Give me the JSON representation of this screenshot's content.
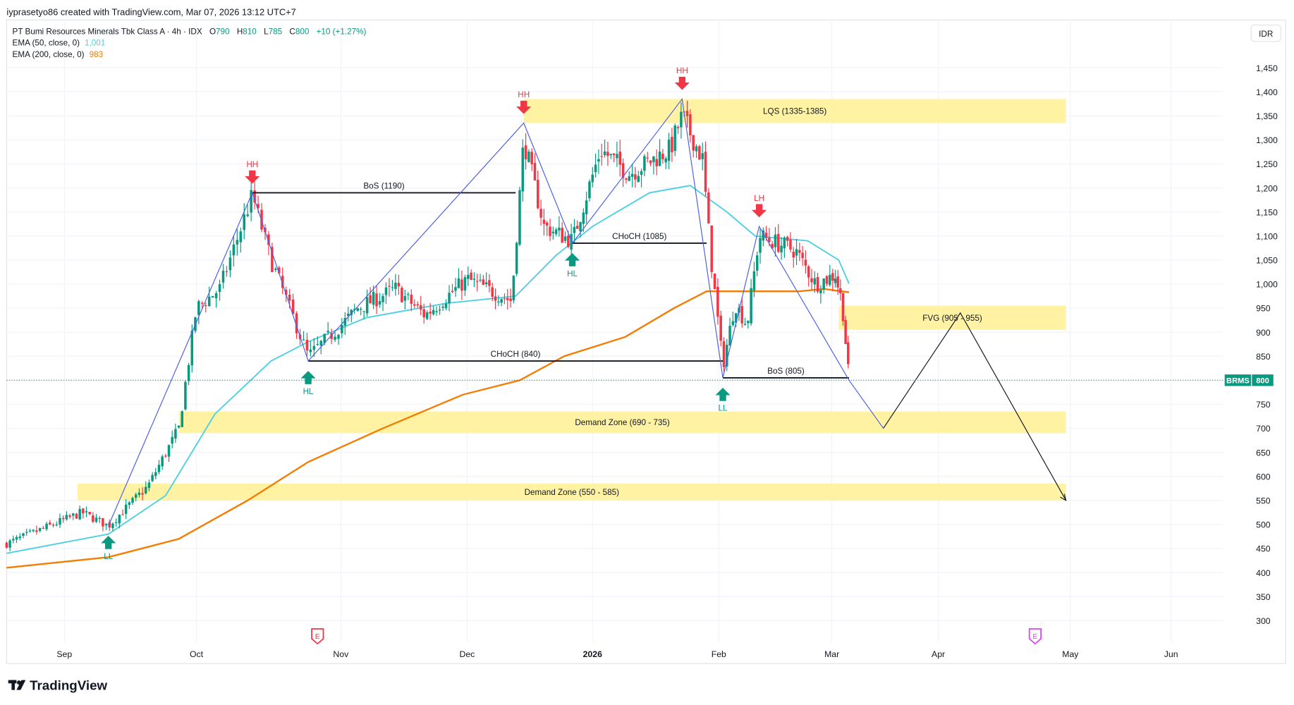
{
  "watermark_header": "iyprasetyo86 created with TradingView.com, Mar 07, 2026 13:12 UTC+7",
  "legend": {
    "title": "PT Bumi Resources Minerals Tbk Class A · 4h · IDX",
    "o_label": "O",
    "o": "790",
    "h_label": "H",
    "h": "810",
    "l_label": "L",
    "l": "785",
    "c_label": "C",
    "c": "800",
    "change": "+10 (+1.27%)",
    "ema50_label": "EMA (50, close, 0)",
    "ema50_value": "1,001",
    "ema200_label": "EMA (200, close, 0)",
    "ema200_value": "983"
  },
  "currency_button": "IDR",
  "price_tag": {
    "symbol": "BRMS",
    "price": "800",
    "value": 800
  },
  "price_axis": {
    "ticks": [
      300,
      350,
      400,
      450,
      500,
      550,
      600,
      650,
      700,
      750,
      800,
      850,
      900,
      950,
      1000,
      1050,
      1100,
      1150,
      1200,
      1250,
      1300,
      1350,
      1400,
      1450
    ],
    "labels": [
      "300",
      "350",
      "400",
      "450",
      "500",
      "550",
      "600",
      "650",
      "700",
      "750",
      "",
      "850",
      "900",
      "950",
      "1,000",
      "1,050",
      "1,100",
      "1,150",
      "1,200",
      "1,250",
      "1,300",
      "1,350",
      "1,400",
      "1,450"
    ]
  },
  "time_axis": {
    "labels": [
      "Sep",
      "Oct",
      "Nov",
      "Dec",
      "2026",
      "Feb",
      "Mar",
      "Apr",
      "May",
      "Jun"
    ],
    "dates": [
      "2025-09-01",
      "2025-10-01",
      "2025-11-01",
      "2025-12-01",
      "2026-01-01",
      "2026-02-01",
      "2026-03-01",
      "2026-04-01",
      "2026-05-01",
      "2026-06-01"
    ]
  },
  "earnings_markers": [
    {
      "date": "2025-10-27",
      "label": "E",
      "color": "#f23645"
    },
    {
      "date": "2026-04-23",
      "label": "E",
      "color": "#e040fb"
    }
  ],
  "colors": {
    "up": "#089981",
    "down": "#f23645",
    "ema50": "#4dd0e1",
    "ema200": "#f57c00",
    "zone": "#fff3a3",
    "swing": "#4a5fe8",
    "projection": "#131722"
  },
  "chart_data": {
    "type": "candlestick",
    "symbol": "BRMS",
    "interval": "4h",
    "price_path": [
      [
        "2025-08-19",
        460
      ],
      [
        "2025-09-05",
        525
      ],
      [
        "2025-09-11",
        497
      ],
      [
        "2025-09-20",
        580
      ],
      [
        "2025-09-27",
        700
      ],
      [
        "2025-10-01",
        950
      ],
      [
        "2025-10-06",
        990
      ],
      [
        "2025-10-13",
        1185
      ],
      [
        "2025-10-17",
        1050
      ],
      [
        "2025-10-25",
        850
      ],
      [
        "2025-11-05",
        950
      ],
      [
        "2025-11-14",
        990
      ],
      [
        "2025-11-21",
        935
      ],
      [
        "2025-12-01",
        1010
      ],
      [
        "2025-12-12",
        965
      ],
      [
        "2025-12-15",
        1300
      ],
      [
        "2025-12-20",
        1120
      ],
      [
        "2025-12-27",
        1090
      ],
      [
        "2026-01-03",
        1280
      ],
      [
        "2026-01-10",
        1230
      ],
      [
        "2026-01-20",
        1280
      ],
      [
        "2026-01-23",
        1350
      ],
      [
        "2026-01-28",
        1260
      ],
      [
        "2026-01-30",
        1060
      ],
      [
        "2026-02-02",
        830
      ],
      [
        "2026-02-05",
        960
      ],
      [
        "2026-02-08",
        915
      ],
      [
        "2026-02-11",
        1100
      ],
      [
        "2026-02-20",
        1070
      ],
      [
        "2026-02-25",
        1000
      ],
      [
        "2026-03-02",
        1020
      ],
      [
        "2026-03-04",
        960
      ],
      [
        "2026-03-06",
        800
      ]
    ],
    "ema50": [
      [
        "2025-08-19",
        440
      ],
      [
        "2025-09-11",
        480
      ],
      [
        "2025-09-24",
        560
      ],
      [
        "2025-10-05",
        730
      ],
      [
        "2025-10-17",
        840
      ],
      [
        "2025-10-25",
        880
      ],
      [
        "2025-11-07",
        930
      ],
      [
        "2025-11-26",
        960
      ],
      [
        "2025-12-13",
        975
      ],
      [
        "2025-12-23",
        1060
      ],
      [
        "2026-01-01",
        1120
      ],
      [
        "2026-01-15",
        1190
      ],
      [
        "2026-01-25",
        1205
      ],
      [
        "2026-02-03",
        1150
      ],
      [
        "2026-02-10",
        1100
      ],
      [
        "2026-02-23",
        1090
      ],
      [
        "2026-03-03",
        1050
      ],
      [
        "2026-03-06",
        1001
      ]
    ],
    "ema200": [
      [
        "2025-08-19",
        410
      ],
      [
        "2025-09-11",
        432
      ],
      [
        "2025-09-27",
        470
      ],
      [
        "2025-10-12",
        550
      ],
      [
        "2025-10-25",
        630
      ],
      [
        "2025-11-11",
        700
      ],
      [
        "2025-11-30",
        770
      ],
      [
        "2025-12-14",
        800
      ],
      [
        "2025-12-25",
        850
      ],
      [
        "2026-01-09",
        890
      ],
      [
        "2026-01-21",
        950
      ],
      [
        "2026-01-29",
        985
      ],
      [
        "2026-02-21",
        985
      ],
      [
        "2026-02-27",
        990
      ],
      [
        "2026-03-06",
        983
      ]
    ],
    "zones": [
      {
        "label": "LQS (1335-1385)",
        "low": 1335,
        "high": 1385,
        "from": "2025-12-15",
        "to": "2026-04-30"
      },
      {
        "label": "FVG (905 - 955)",
        "low": 905,
        "high": 955,
        "from": "2026-03-03",
        "to": "2026-04-30"
      },
      {
        "label": "Demand Zone (690 - 735)",
        "low": 690,
        "high": 735,
        "from": "2025-09-27",
        "to": "2026-04-30"
      },
      {
        "label": "Demand Zone (550 - 585)",
        "low": 550,
        "high": 585,
        "from": "2025-09-04",
        "to": "2026-04-30"
      }
    ],
    "levels": [
      {
        "label": "BoS (1190)",
        "price": 1190,
        "from": "2025-10-13",
        "to": "2025-12-13"
      },
      {
        "label": "CHoCH (1085)",
        "price": 1085,
        "from": "2025-12-27",
        "to": "2026-01-29"
      },
      {
        "label": "CHoCH (840)",
        "price": 840,
        "from": "2025-10-25",
        "to": "2026-02-02"
      },
      {
        "label": "BoS (805)",
        "price": 805,
        "from": "2026-02-02",
        "to": "2026-03-06"
      }
    ],
    "swings": [
      [
        "2025-09-11",
        497
      ],
      [
        "2025-10-13",
        1190
      ],
      [
        "2025-10-25",
        840
      ],
      [
        "2025-12-15",
        1335
      ],
      [
        "2025-12-27",
        1085
      ],
      [
        "2026-01-23",
        1385
      ],
      [
        "2026-02-02",
        805
      ],
      [
        "2026-02-11",
        1120
      ],
      [
        "2026-03-06",
        800
      ],
      [
        "2026-03-16",
        700
      ]
    ],
    "projection": [
      [
        "2026-03-16",
        700
      ],
      [
        "2026-04-06",
        940
      ],
      [
        "2026-04-30",
        550
      ]
    ],
    "swing_labels": [
      {
        "label": "LL",
        "date": "2025-09-11",
        "price": 497,
        "dir": "up"
      },
      {
        "label": "HH",
        "date": "2025-10-13",
        "price": 1190,
        "dir": "down"
      },
      {
        "label": "HL",
        "date": "2025-10-25",
        "price": 840,
        "dir": "up"
      },
      {
        "label": "HH",
        "date": "2025-12-15",
        "price": 1335,
        "dir": "down"
      },
      {
        "label": "HL",
        "date": "2025-12-27",
        "price": 1085,
        "dir": "up"
      },
      {
        "label": "HH",
        "date": "2026-01-23",
        "price": 1385,
        "dir": "down"
      },
      {
        "label": "LL",
        "date": "2026-02-02",
        "price": 805,
        "dir": "up"
      },
      {
        "label": "LH",
        "date": "2026-02-11",
        "price": 1120,
        "dir": "down"
      }
    ]
  },
  "footer_logo": "TradingView"
}
